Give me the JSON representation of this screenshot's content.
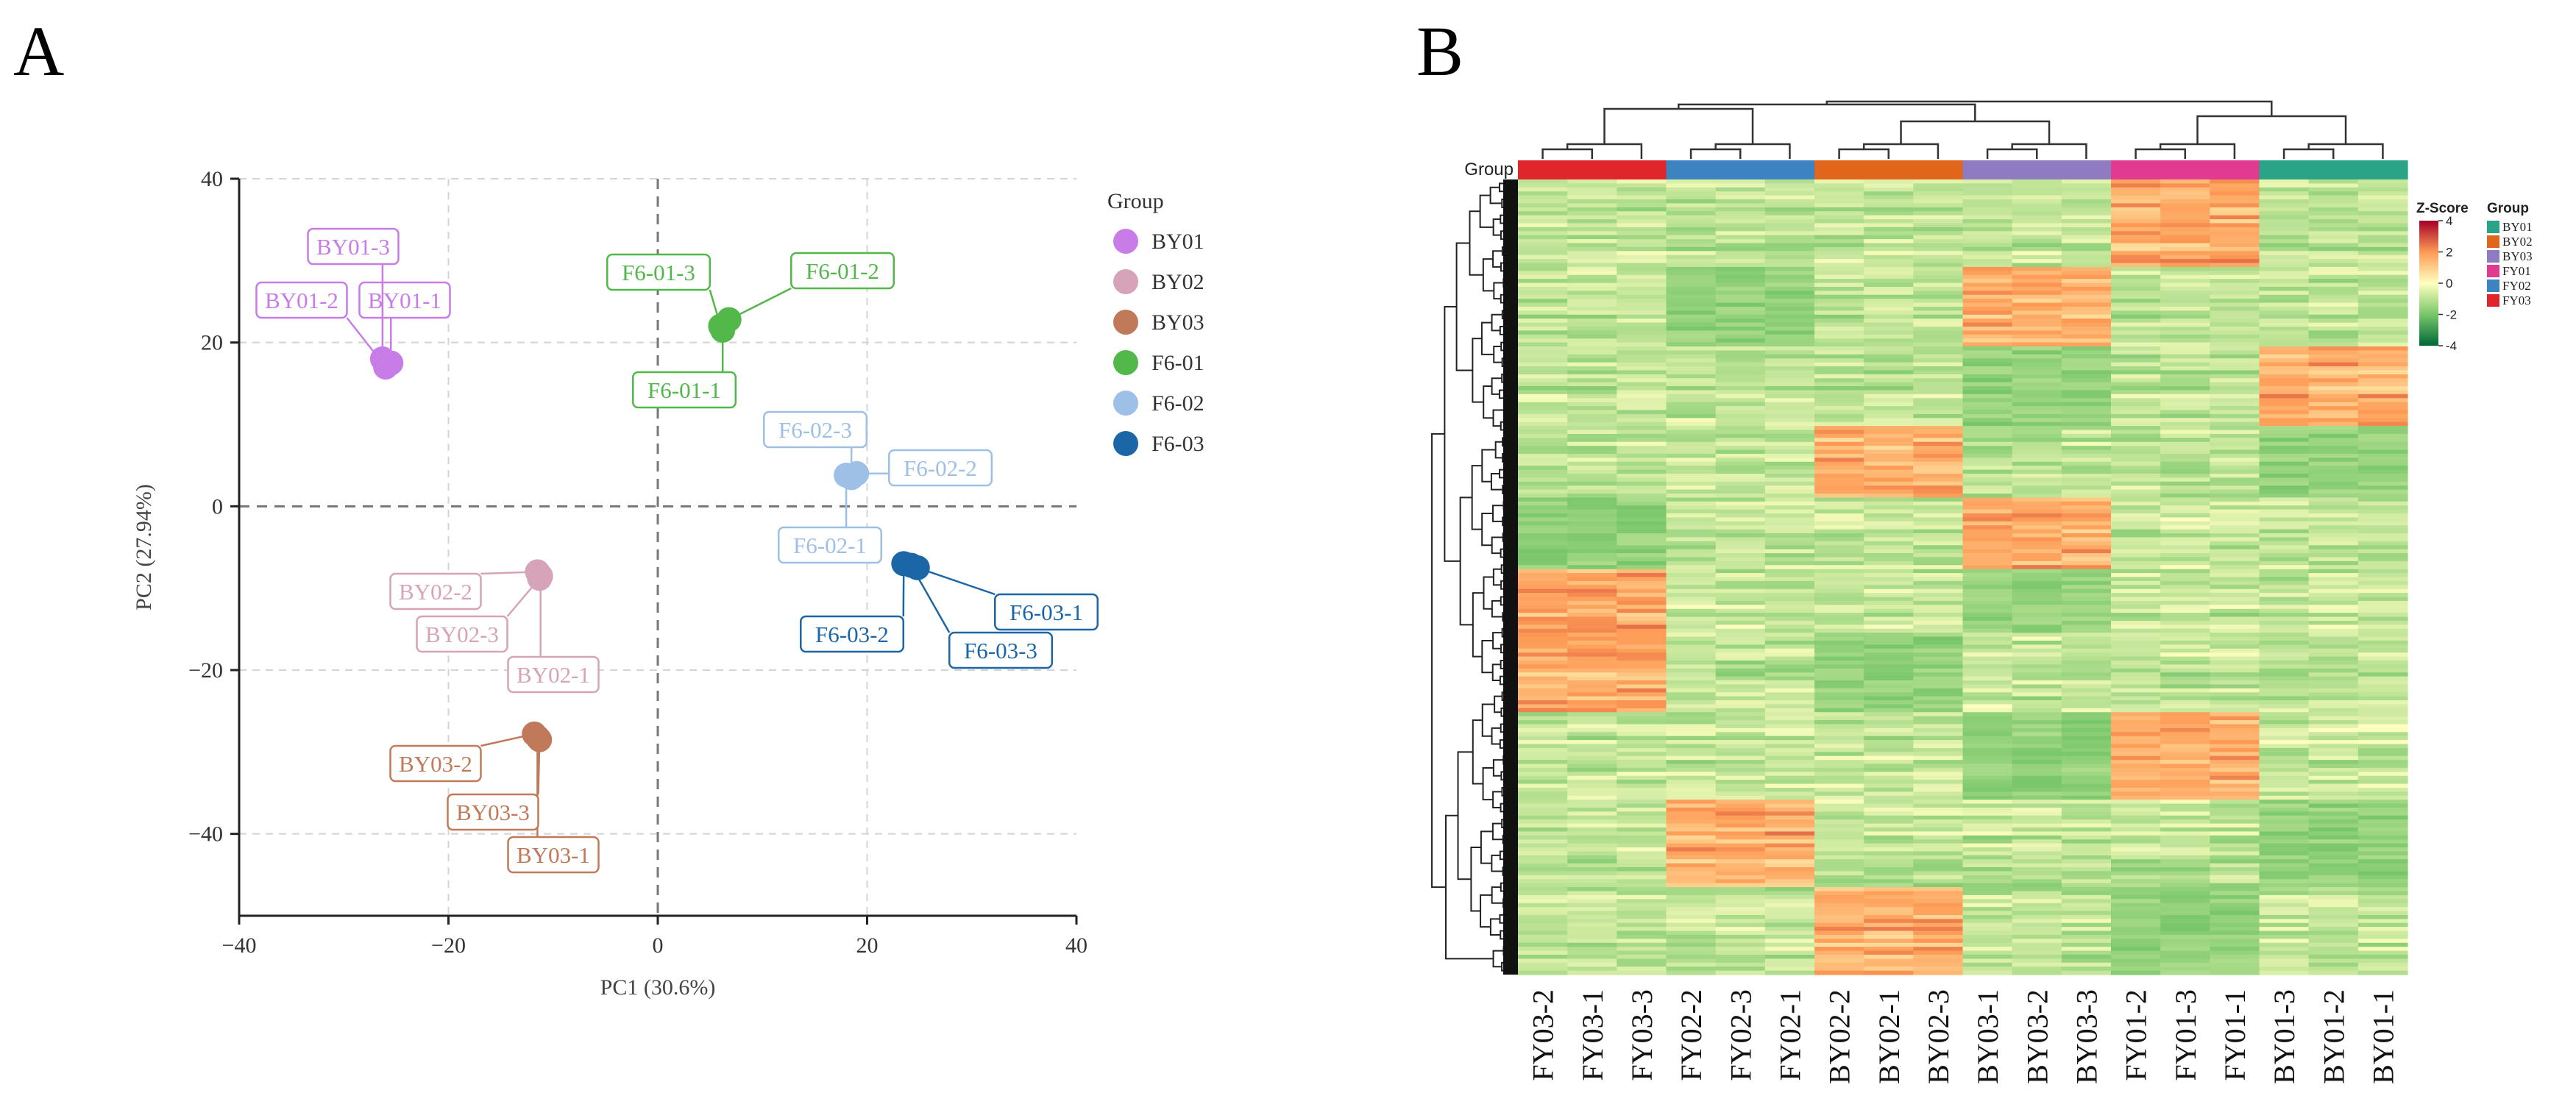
{
  "panels": {
    "a": "A",
    "b": "B"
  },
  "colors": {
    "BY01": "#c77ce8",
    "BY02": "#d7a3b8",
    "BY03": "#c07a5a",
    "F6-01": "#52b84a",
    "F6-02": "#9fc0e6",
    "F6-03": "#1b66a6",
    "hm_BY01": "#2aa386",
    "hm_BY02": "#e0661c",
    "hm_BY03": "#8f7cc0",
    "hm_FY01": "#e03b91",
    "hm_FY02": "#3c83c2",
    "hm_FY03": "#e0262a"
  },
  "chart_data": [
    {
      "type": "scatter",
      "panel": "A",
      "xlabel": "PC1 (30.6%)",
      "ylabel": "PC2 (27.94%)",
      "xlim": [
        -40,
        40
      ],
      "ylim": [
        -50,
        40
      ],
      "xticks": [
        -40,
        -20,
        0,
        20,
        40
      ],
      "yticks": [
        -40,
        -20,
        0,
        20,
        40
      ],
      "grid": true,
      "legend_title": "Group",
      "legend_position": "right",
      "groups": [
        "BY01",
        "BY02",
        "BY03",
        "F6-01",
        "F6-02",
        "F6-03"
      ],
      "points": [
        {
          "label": "BY01-1",
          "group": "BY01",
          "x": -25.5,
          "y": 17.5
        },
        {
          "label": "BY01-2",
          "group": "BY01",
          "x": -26.0,
          "y": 17.0
        },
        {
          "label": "BY01-3",
          "group": "BY01",
          "x": -26.3,
          "y": 18.0
        },
        {
          "label": "BY02-1",
          "group": "BY02",
          "x": -11.2,
          "y": -8.5
        },
        {
          "label": "BY02-2",
          "group": "BY02",
          "x": -11.5,
          "y": -8.0
        },
        {
          "label": "BY02-3",
          "group": "BY02",
          "x": -11.3,
          "y": -8.8
        },
        {
          "label": "BY03-1",
          "group": "BY03",
          "x": -11.5,
          "y": -28.2
        },
        {
          "label": "BY03-2",
          "group": "BY03",
          "x": -11.8,
          "y": -27.8
        },
        {
          "label": "BY03-3",
          "group": "BY03",
          "x": -11.3,
          "y": -28.5
        },
        {
          "label": "F6-01-1",
          "group": "F6-01",
          "x": 6.2,
          "y": 21.5
        },
        {
          "label": "F6-01-2",
          "group": "F6-01",
          "x": 6.8,
          "y": 22.8
        },
        {
          "label": "F6-01-3",
          "group": "F6-01",
          "x": 6.0,
          "y": 22.0
        },
        {
          "label": "F6-02-1",
          "group": "F6-02",
          "x": 18.0,
          "y": 3.8
        },
        {
          "label": "F6-02-2",
          "group": "F6-02",
          "x": 19.0,
          "y": 4.0
        },
        {
          "label": "F6-02-3",
          "group": "F6-02",
          "x": 18.5,
          "y": 3.5
        },
        {
          "label": "F6-03-1",
          "group": "F6-03",
          "x": 24.8,
          "y": -7.5
        },
        {
          "label": "F6-03-2",
          "group": "F6-03",
          "x": 23.5,
          "y": -7.0
        },
        {
          "label": "F6-03-3",
          "group": "F6-03",
          "x": 24.2,
          "y": -7.2
        }
      ]
    },
    {
      "type": "heatmap",
      "panel": "B",
      "row_label": "Group",
      "columns": [
        "FY03-2",
        "FY03-1",
        "FY03-3",
        "FY02-2",
        "FY02-3",
        "FY02-1",
        "BY02-2",
        "BY02-1",
        "BY02-3",
        "BY03-1",
        "BY03-2",
        "BY03-3",
        "FY01-2",
        "FY01-3",
        "FY01-1",
        "BY01-3",
        "BY01-2",
        "BY01-1"
      ],
      "column_groups": [
        "FY03",
        "FY03",
        "FY03",
        "FY02",
        "FY02",
        "FY02",
        "BY02",
        "BY02",
        "BY02",
        "BY03",
        "BY03",
        "BY03",
        "FY01",
        "FY01",
        "FY01",
        "BY01",
        "BY01",
        "BY01"
      ],
      "scale_title": "Z-Score",
      "scale_range": [
        -4,
        4
      ],
      "scale_ticks": [
        4,
        2,
        0,
        -2,
        -4
      ],
      "legend_title": "Group",
      "legend_groups": [
        "BY01",
        "BY02",
        "BY03",
        "FY01",
        "FY02",
        "FY03"
      ]
    }
  ]
}
